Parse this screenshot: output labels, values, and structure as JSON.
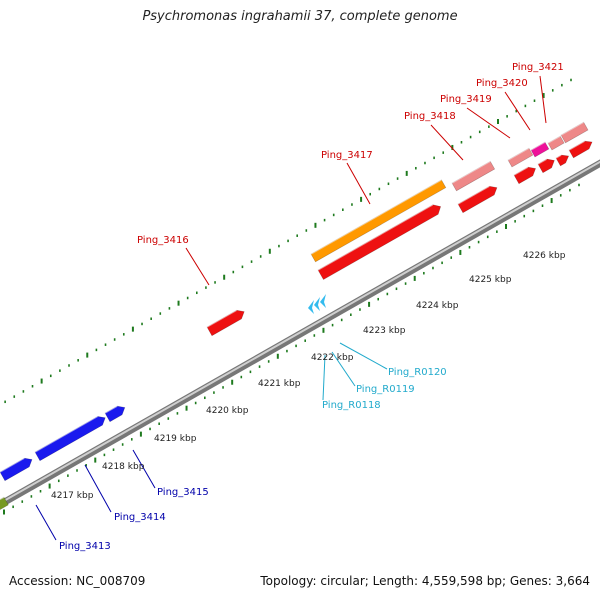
{
  "title": "Psychromonas ingrahamii 37, complete genome",
  "footer": {
    "accession": "Accession: NC_008709",
    "summary": "Topology: circular; Length: 4,559,598 bp; Genes: 3,664"
  },
  "colors": {
    "axis": "#9a9a9a",
    "tick": "#1e7a1e",
    "gene_red": "#ee1111",
    "gene_orange": "#ff9900",
    "gene_pink": "#ee8888",
    "gene_magenta": "#ee1199",
    "gene_blue": "#1a1aee",
    "gene_olive": "#779922",
    "rna": "#33bbee",
    "label_red": "#cc0000",
    "label_blue": "#0000aa",
    "label_cyan": "#22aacc"
  },
  "kbp_labels": [
    "4217 kbp",
    "4218 kbp",
    "4219 kbp",
    "4220 kbp",
    "4221 kbp",
    "4222 kbp",
    "4223 kbp",
    "4224 kbp",
    "4225 kbp",
    "4226 kbp"
  ],
  "gene_labels": {
    "ping_3413": "Ping_3413",
    "ping_3414": "Ping_3414",
    "ping_3415": "Ping_3415",
    "ping_3416": "Ping_3416",
    "ping_3417": "Ping_3417",
    "ping_3418": "Ping_3418",
    "ping_3419": "Ping_3419",
    "ping_3420": "Ping_3420",
    "ping_3421": "Ping_3421",
    "ping_r0118": "Ping_R0118",
    "ping_r0119": "Ping_R0119",
    "ping_r0120": "Ping_R0120"
  }
}
